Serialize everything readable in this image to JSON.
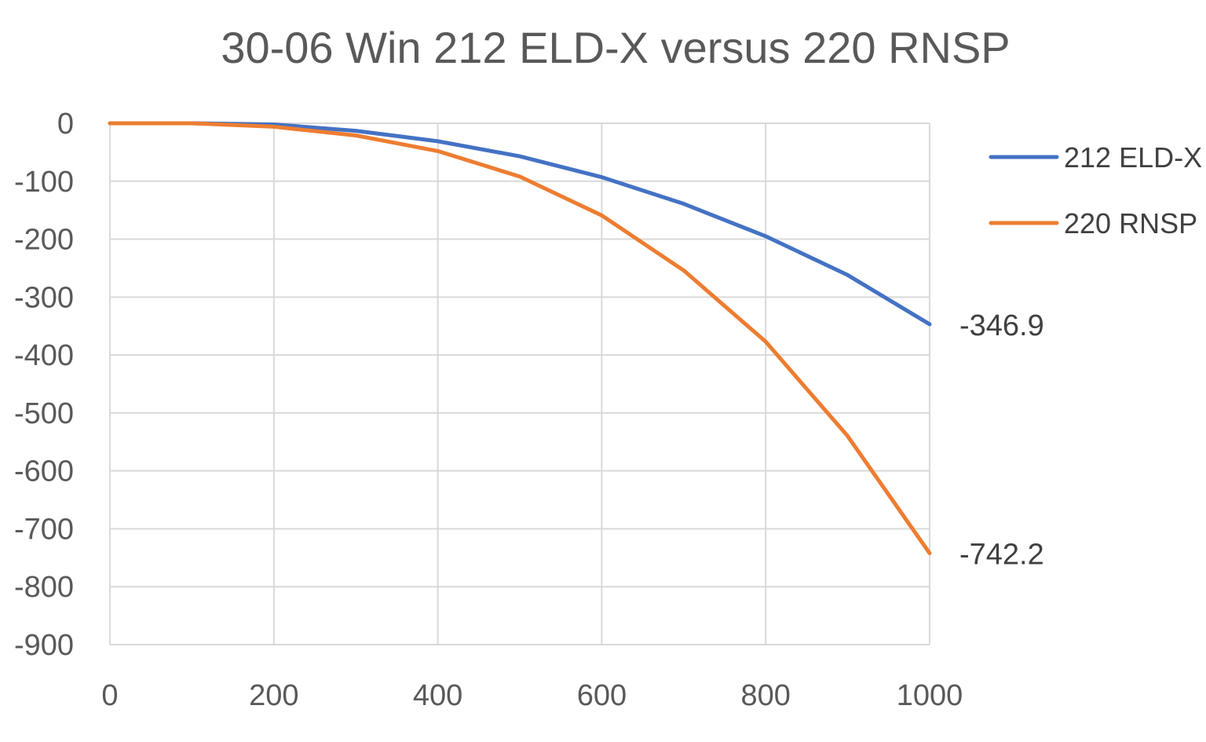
{
  "chart_data": {
    "type": "line",
    "title": "30-06 Win  212 ELD-X  versus  220 RNSP",
    "xlabel": "",
    "ylabel": "",
    "x": [
      0,
      100,
      200,
      300,
      400,
      500,
      600,
      700,
      800,
      900,
      1000
    ],
    "xlim": [
      0,
      1000
    ],
    "ylim": [
      -900,
      0
    ],
    "x_ticks": [
      0,
      200,
      400,
      600,
      800,
      1000
    ],
    "y_ticks": [
      0,
      -100,
      -200,
      -300,
      -400,
      -500,
      -600,
      -700,
      -800,
      -900
    ],
    "grid": true,
    "legend_position": "right",
    "series": [
      {
        "name": "212 ELD-X",
        "color": "#4472C4",
        "values": [
          0,
          0,
          -2,
          -13,
          -31,
          -57,
          -93,
          -139,
          -195,
          -262,
          -346.9
        ]
      },
      {
        "name": "220 RNSP",
        "color": "#ED7D31",
        "values": [
          0,
          0,
          -6,
          -21,
          -48,
          -92,
          -159,
          -254,
          -377,
          -540,
          -742.2
        ]
      }
    ],
    "end_labels": [
      "-346.9",
      "-742.2"
    ]
  }
}
